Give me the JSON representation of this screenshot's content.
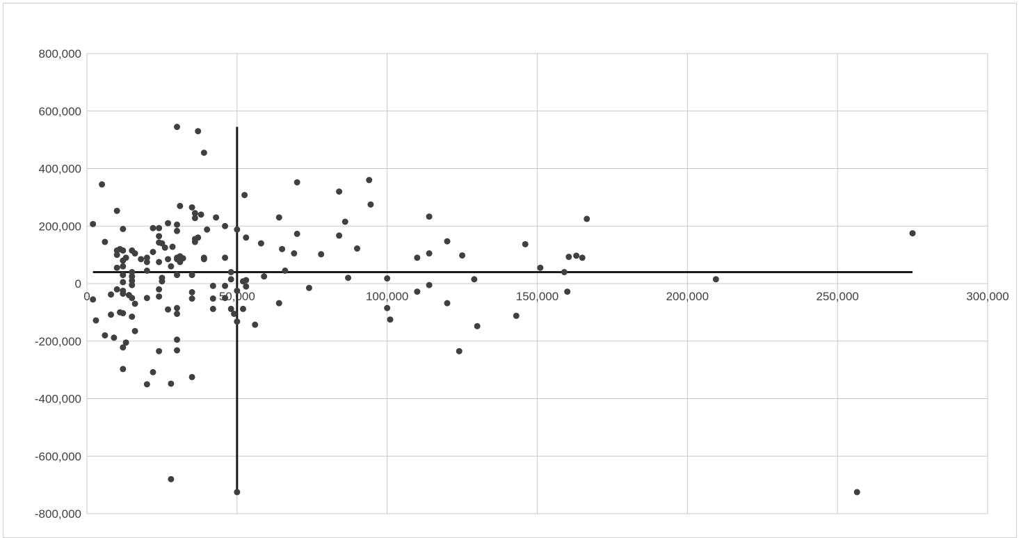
{
  "chart_data": {
    "type": "scatter",
    "title": "",
    "xlabel": "",
    "ylabel": "",
    "xlim": [
      0,
      300000
    ],
    "ylim": [
      -800000,
      800000
    ],
    "x_ticks": [
      0,
      50000,
      100000,
      150000,
      200000,
      250000,
      300000
    ],
    "y_ticks": [
      -800000,
      -600000,
      -400000,
      -200000,
      0,
      200000,
      400000,
      600000,
      800000
    ],
    "x_tick_labels": [
      "0",
      "50,000",
      "100,000",
      "150,000",
      "200,000",
      "250,000",
      "300,000"
    ],
    "y_tick_labels": [
      "-800,000",
      "-600,000",
      "-400,000",
      "-200,000",
      "0",
      "200,000",
      "400,000",
      "600,000",
      "800,000"
    ],
    "grid": true,
    "legend": "none",
    "colors": {
      "points": "#404040",
      "lines": "#1a1a1a",
      "grid": "#c8c8c8",
      "text": "#404040"
    },
    "reference_lines": [
      {
        "orientation": "horizontal",
        "y": 40000,
        "x_range": [
          2000,
          275000
        ]
      },
      {
        "orientation": "vertical",
        "x": 50000,
        "y_range": [
          -725000,
          545000
        ]
      }
    ],
    "series": [
      {
        "points": [
          [
            2000,
            207000
          ],
          [
            2000,
            -55000
          ],
          [
            3000,
            -128000
          ],
          [
            5000,
            345000
          ],
          [
            6000,
            145000
          ],
          [
            6000,
            -180000
          ],
          [
            8000,
            -108000
          ],
          [
            8000,
            -38000
          ],
          [
            9000,
            -188000
          ],
          [
            10000,
            55000
          ],
          [
            10000,
            253000
          ],
          [
            10000,
            115000
          ],
          [
            10000,
            100000
          ],
          [
            10000,
            -20000
          ],
          [
            11000,
            -100000
          ],
          [
            11000,
            120000
          ],
          [
            12000,
            190000
          ],
          [
            12000,
            115000
          ],
          [
            12000,
            80000
          ],
          [
            12000,
            60000
          ],
          [
            12000,
            30000
          ],
          [
            12000,
            5000
          ],
          [
            12000,
            -25000
          ],
          [
            12000,
            -35000
          ],
          [
            12000,
            -103000
          ],
          [
            12000,
            -222000
          ],
          [
            12000,
            -297000
          ],
          [
            13000,
            90000
          ],
          [
            13000,
            -205000
          ],
          [
            14000,
            -40000
          ],
          [
            15000,
            115000
          ],
          [
            15000,
            40000
          ],
          [
            15000,
            25000
          ],
          [
            15000,
            10000
          ],
          [
            15000,
            -5000
          ],
          [
            15000,
            -50000
          ],
          [
            15000,
            -115000
          ],
          [
            16000,
            105000
          ],
          [
            16000,
            -70000
          ],
          [
            16000,
            -165000
          ],
          [
            18000,
            85000
          ],
          [
            20000,
            90000
          ],
          [
            20000,
            75000
          ],
          [
            20000,
            45000
          ],
          [
            20000,
            -50000
          ],
          [
            20000,
            -350000
          ],
          [
            22000,
            193000
          ],
          [
            22000,
            110000
          ],
          [
            22000,
            -308000
          ],
          [
            24000,
            193000
          ],
          [
            24000,
            165000
          ],
          [
            24000,
            143000
          ],
          [
            24000,
            75000
          ],
          [
            24000,
            -20000
          ],
          [
            24000,
            -45000
          ],
          [
            24000,
            -235000
          ],
          [
            25000,
            140000
          ],
          [
            25000,
            20000
          ],
          [
            25000,
            8000
          ],
          [
            26000,
            125000
          ],
          [
            27000,
            210000
          ],
          [
            27000,
            85000
          ],
          [
            27000,
            -90000
          ],
          [
            28000,
            60000
          ],
          [
            28000,
            -348000
          ],
          [
            28000,
            -680000
          ],
          [
            28500,
            128000
          ],
          [
            30000,
            545000
          ],
          [
            30000,
            205000
          ],
          [
            30000,
            183000
          ],
          [
            30000,
            90000
          ],
          [
            30000,
            85000
          ],
          [
            30000,
            30000
          ],
          [
            30000,
            -85000
          ],
          [
            30000,
            -105000
          ],
          [
            30000,
            -195000
          ],
          [
            30000,
            -232000
          ],
          [
            31000,
            270000
          ],
          [
            31000,
            95000
          ],
          [
            31000,
            75000
          ],
          [
            32000,
            88000
          ],
          [
            35000,
            265000
          ],
          [
            35000,
            30000
          ],
          [
            35000,
            -30000
          ],
          [
            35000,
            -52000
          ],
          [
            35000,
            -325000
          ],
          [
            36000,
            245000
          ],
          [
            36000,
            228000
          ],
          [
            36000,
            155000
          ],
          [
            36000,
            145000
          ],
          [
            37000,
            530000
          ],
          [
            37000,
            160000
          ],
          [
            38000,
            240000
          ],
          [
            39000,
            455000
          ],
          [
            39000,
            90000
          ],
          [
            39000,
            85000
          ],
          [
            40000,
            188000
          ],
          [
            42000,
            -8000
          ],
          [
            42000,
            -52000
          ],
          [
            42000,
            -88000
          ],
          [
            43000,
            230000
          ],
          [
            46000,
            200000
          ],
          [
            46000,
            90000
          ],
          [
            46000,
            -8000
          ],
          [
            46000,
            -50000
          ],
          [
            48000,
            40000
          ],
          [
            48000,
            15000
          ],
          [
            48000,
            -88000
          ],
          [
            49000,
            -105000
          ],
          [
            50000,
            188000
          ],
          [
            50000,
            -25000
          ],
          [
            50000,
            -132000
          ],
          [
            50000,
            -725000
          ],
          [
            52000,
            8000
          ],
          [
            52000,
            -88000
          ],
          [
            52500,
            308000
          ],
          [
            53000,
            160000
          ],
          [
            53000,
            12000
          ],
          [
            53000,
            -10000
          ],
          [
            56000,
            -143000
          ],
          [
            58000,
            140000
          ],
          [
            59000,
            25000
          ],
          [
            64000,
            230000
          ],
          [
            64000,
            -68000
          ],
          [
            65000,
            120000
          ],
          [
            66000,
            45000
          ],
          [
            69000,
            105000
          ],
          [
            70000,
            352000
          ],
          [
            70000,
            173000
          ],
          [
            74000,
            -15000
          ],
          [
            78000,
            102000
          ],
          [
            84000,
            320000
          ],
          [
            84000,
            167000
          ],
          [
            86000,
            215000
          ],
          [
            87000,
            20000
          ],
          [
            90000,
            122000
          ],
          [
            94000,
            360000
          ],
          [
            94500,
            275000
          ],
          [
            100000,
            18000
          ],
          [
            100000,
            -85000
          ],
          [
            101000,
            -125000
          ],
          [
            110000,
            90000
          ],
          [
            110000,
            -28000
          ],
          [
            114000,
            233000
          ],
          [
            114000,
            105000
          ],
          [
            114000,
            -5000
          ],
          [
            120000,
            147000
          ],
          [
            120000,
            -68000
          ],
          [
            124000,
            -235000
          ],
          [
            125000,
            98000
          ],
          [
            129000,
            15000
          ],
          [
            130000,
            -148000
          ],
          [
            143000,
            -112000
          ],
          [
            146000,
            137000
          ],
          [
            151000,
            55000
          ],
          [
            159000,
            40000
          ],
          [
            160000,
            -28000
          ],
          [
            160500,
            93000
          ],
          [
            163000,
            97000
          ],
          [
            165000,
            90000
          ],
          [
            166500,
            225000
          ],
          [
            209500,
            15000
          ],
          [
            256500,
            -725000
          ],
          [
            275000,
            175000
          ]
        ]
      }
    ]
  }
}
